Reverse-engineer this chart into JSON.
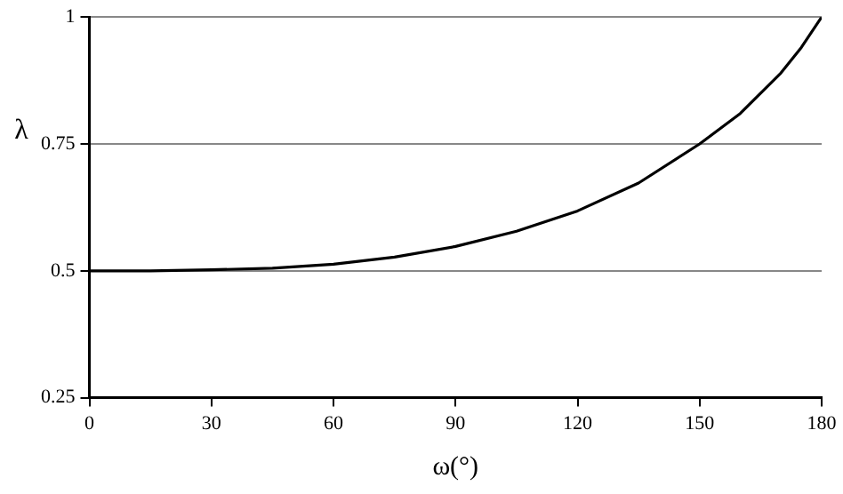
{
  "chart_data": {
    "type": "line",
    "xlabel": "ω(°)",
    "ylabel": "λ",
    "x": [
      0,
      15,
      30,
      45,
      60,
      75,
      90,
      105,
      120,
      135,
      150,
      160,
      165,
      170,
      175,
      180
    ],
    "series": [
      {
        "color": "#000000",
        "values": [
          0.5,
          0.5,
          0.502,
          0.505,
          0.513,
          0.527,
          0.548,
          0.578,
          0.618,
          0.673,
          0.75,
          0.81,
          0.85,
          0.89,
          0.94,
          1
        ]
      }
    ],
    "xlim": [
      0,
      180
    ],
    "xticks": [
      0,
      30,
      60,
      90,
      120,
      150,
      180
    ],
    "ylim": [
      0.25,
      1
    ],
    "yticks": [
      0.25,
      0.5,
      0.75,
      1
    ],
    "grid": "y",
    "marker": "none",
    "line_style": "solid",
    "legend": false
  }
}
